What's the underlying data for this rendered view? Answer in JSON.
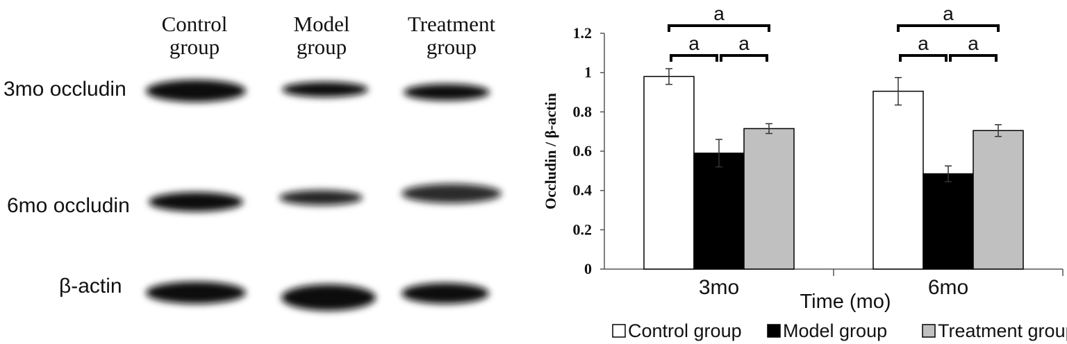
{
  "blot": {
    "columns": [
      {
        "line1": "Control",
        "line2": "group"
      },
      {
        "line1": "Model",
        "line2": "group"
      },
      {
        "line1": "Treatment",
        "line2": "group"
      }
    ],
    "rows": [
      {
        "label": "3mo occludin",
        "intensity": [
          1.0,
          0.7,
          0.8
        ]
      },
      {
        "label": "6mo occludin",
        "intensity": [
          0.9,
          0.6,
          0.75
        ]
      },
      {
        "label": "β-actin",
        "intensity": [
          1.0,
          1.0,
          1.0
        ]
      }
    ]
  },
  "chart_data": {
    "type": "bar",
    "categories": [
      "3mo",
      "6mo"
    ],
    "series": [
      {
        "name": "Control group",
        "values": [
          0.98,
          0.905
        ],
        "errors": [
          0.04,
          0.07
        ],
        "color": "#ffffff"
      },
      {
        "name": "Model group",
        "values": [
          0.59,
          0.485
        ],
        "errors": [
          0.07,
          0.04
        ],
        "color": "#000000"
      },
      {
        "name": "Treatment group",
        "values": [
          0.715,
          0.705
        ],
        "errors": [
          0.025,
          0.03
        ],
        "color": "#c0c0c0"
      }
    ],
    "title": "",
    "xlabel": "Time (mo)",
    "ylabel": "Occludin / β-actin",
    "ylim": [
      0,
      1.2
    ],
    "yticks": [
      "0",
      "0.2",
      "0.4",
      "0.6",
      "0.8",
      "1",
      "1.2"
    ],
    "significance": [
      {
        "category": "3mo",
        "from": "Control group",
        "to": "Model group",
        "label": "a"
      },
      {
        "category": "3mo",
        "from": "Model group",
        "to": "Treatment group",
        "label": "a"
      },
      {
        "category": "3mo",
        "from": "Control group",
        "to": "Treatment group",
        "label": "a"
      },
      {
        "category": "6mo",
        "from": "Control group",
        "to": "Model group",
        "label": "a"
      },
      {
        "category": "6mo",
        "from": "Model group",
        "to": "Treatment group",
        "label": "a"
      },
      {
        "category": "6mo",
        "from": "Control group",
        "to": "Treatment group",
        "label": "a"
      }
    ],
    "grid": false,
    "legend": "bottom"
  }
}
